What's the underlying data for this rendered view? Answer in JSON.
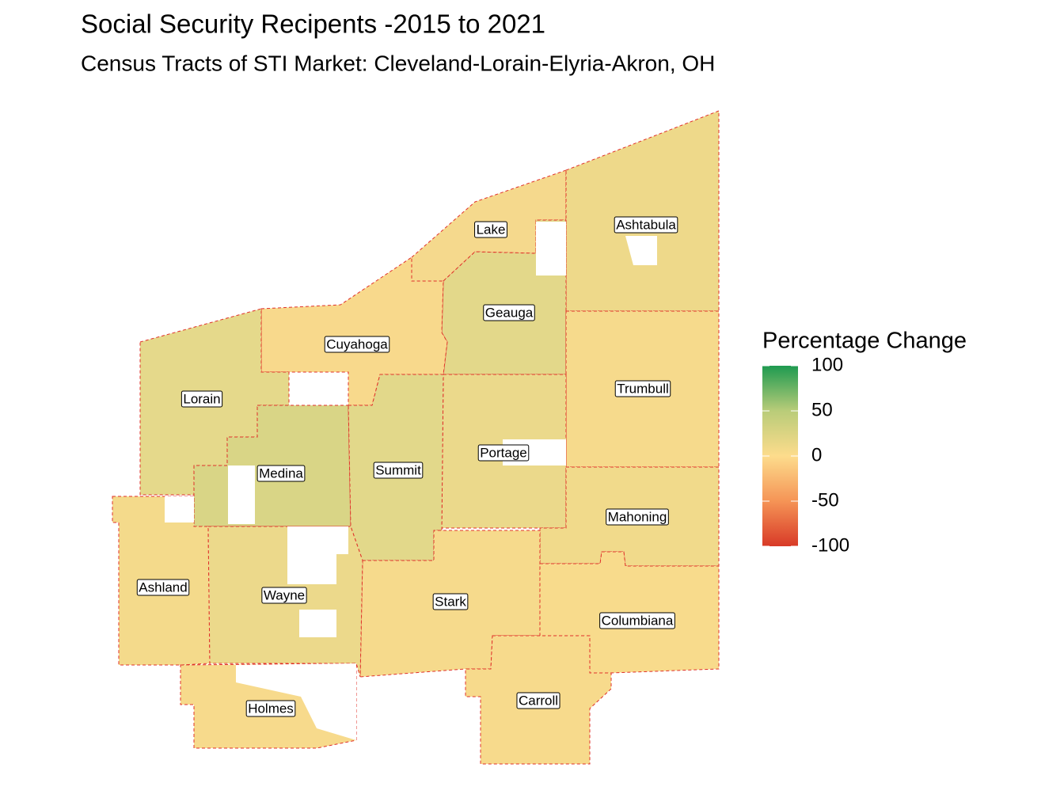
{
  "header": {
    "title": "Social Security Recipents -2015 to 2021",
    "subtitle": "Census Tracts of STI Market: Cleveland-Lorain-Elyria-Akron, OH"
  },
  "legend": {
    "title": "Percentage Change",
    "range": [
      -100,
      100
    ],
    "ticks": [
      100,
      50,
      0,
      -50,
      -100
    ],
    "colors": [
      "#1e9a50",
      "#b9cc79",
      "#fddc8c",
      "#f59456",
      "#d83a27"
    ]
  },
  "counties": [
    {
      "label": "Lake"
    },
    {
      "label": "Ashtabula"
    },
    {
      "label": "Geauga"
    },
    {
      "label": "Cuyahoga"
    },
    {
      "label": "Lorain"
    },
    {
      "label": "Trumbull"
    },
    {
      "label": "Portage"
    },
    {
      "label": "Medina"
    },
    {
      "label": "Summit"
    },
    {
      "label": "Mahoning"
    },
    {
      "label": "Ashland"
    },
    {
      "label": "Wayne"
    },
    {
      "label": "Stark"
    },
    {
      "label": "Columbiana"
    },
    {
      "label": "Carroll"
    },
    {
      "label": "Holmes"
    }
  ]
}
